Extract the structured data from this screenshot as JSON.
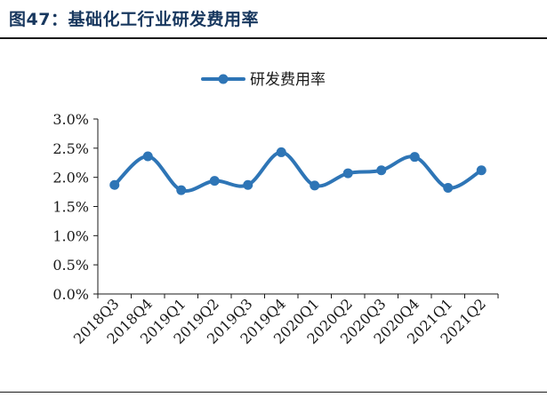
{
  "figure": {
    "title": "图47：基础化工行业研发费用率"
  },
  "chart_data": {
    "type": "line",
    "categories": [
      "2018Q3",
      "2018Q4",
      "2019Q1",
      "2019Q2",
      "2019Q3",
      "2019Q4",
      "2020Q1",
      "2020Q2",
      "2020Q3",
      "2020Q4",
      "2021Q1",
      "2021Q2"
    ],
    "series": [
      {
        "name": "研发费用率",
        "values": [
          1.87,
          2.36,
          1.78,
          1.94,
          1.87,
          2.43,
          1.86,
          2.07,
          2.12,
          2.35,
          1.82,
          2.12
        ]
      }
    ],
    "ylim": [
      0,
      3.0
    ],
    "yticks": [
      0.0,
      0.5,
      1.0,
      1.5,
      2.0,
      2.5,
      3.0
    ],
    "ytick_labels": [
      "0.0%",
      "0.5%",
      "1.0%",
      "1.5%",
      "2.0%",
      "2.5%",
      "3.0%"
    ],
    "grid": false,
    "legend": "top-center",
    "colors": {
      "series": "#2e75b6",
      "axis": "#1a1a1a",
      "title": "#17375e"
    }
  }
}
